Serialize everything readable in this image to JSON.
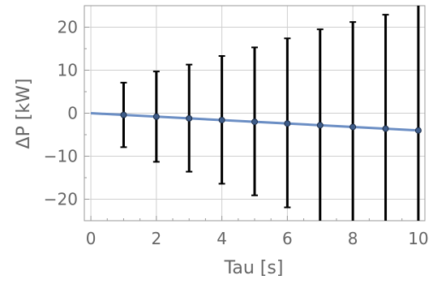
{
  "chart_data": {
    "type": "scatter",
    "xlabel": "Tau [s]",
    "ylabel": "ΔP [kW]",
    "xlim": [
      -0.2,
      10.2
    ],
    "ylim": [
      -25,
      25
    ],
    "xticks": [
      0,
      2,
      4,
      6,
      8,
      10
    ],
    "yticks": [
      -20,
      -10,
      0,
      10,
      20
    ],
    "grid": true,
    "points": [
      {
        "x": 1,
        "y": -0.4,
        "lower": -7.9,
        "upper": 7.1
      },
      {
        "x": 2,
        "y": -0.8,
        "lower": -11.3,
        "upper": 9.7
      },
      {
        "x": 3,
        "y": -1.2,
        "lower": -13.6,
        "upper": 11.3
      },
      {
        "x": 4,
        "y": -1.6,
        "lower": -16.4,
        "upper": 13.3
      },
      {
        "x": 5,
        "y": -2.0,
        "lower": -19.1,
        "upper": 15.3
      },
      {
        "x": 6,
        "y": -2.4,
        "lower": -21.9,
        "upper": 17.4
      },
      {
        "x": 7,
        "y": -2.8,
        "lower": -25.0,
        "upper": 19.5
      },
      {
        "x": 8,
        "y": -3.2,
        "lower": -25.0,
        "upper": 21.2
      },
      {
        "x": 9,
        "y": -3.6,
        "lower": -25.0,
        "upper": 22.9
      },
      {
        "x": 10,
        "y": -4.0,
        "lower": -25.0,
        "upper": 25.0
      }
    ],
    "fit_line": {
      "x": [
        0,
        10
      ],
      "y": [
        0,
        -4.0
      ]
    },
    "colors": {
      "errorbar": "#000000",
      "point": "#3f5d8a",
      "fit": "#6b8ec4",
      "grid": "#cfcfcf",
      "frame": "#999999",
      "text": "#666666"
    }
  }
}
